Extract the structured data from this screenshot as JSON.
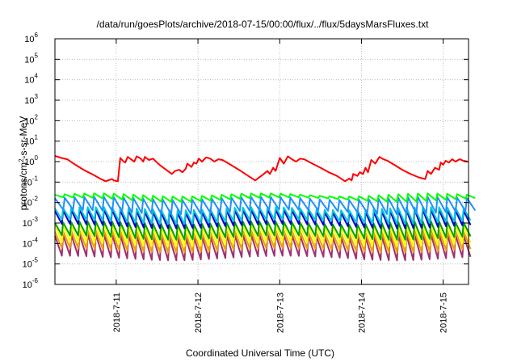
{
  "chart_data": {
    "type": "line",
    "title": "/data/run/goesPlots/archive/2018-07-15/00:00/flux/../flux/5daysMarsFluxes.txt",
    "xlabel": "Coordinated Universal Time (UTC)",
    "ylabel_parts": {
      "pre": "protons/cm",
      "sup": "2",
      "post": "-s-sr-MeV"
    },
    "yscale": "log",
    "ylim": [
      1e-06,
      1000000.0
    ],
    "xlim": [
      0.0,
      5.06
    ],
    "grid": true,
    "y_ticks": [
      {
        "value": 1e-06,
        "base": "10",
        "exp": "-6"
      },
      {
        "value": 1e-05,
        "base": "10",
        "exp": "-5"
      },
      {
        "value": 0.0001,
        "base": "10",
        "exp": "-4"
      },
      {
        "value": 0.001,
        "base": "10",
        "exp": "-3"
      },
      {
        "value": 0.01,
        "base": "10",
        "exp": "-2"
      },
      {
        "value": 0.1,
        "base": "10",
        "exp": "-1"
      },
      {
        "value": 1,
        "base": "10",
        "exp": "0"
      },
      {
        "value": 10,
        "base": "10",
        "exp": "1"
      },
      {
        "value": 100,
        "base": "10",
        "exp": "2"
      },
      {
        "value": 1000,
        "base": "10",
        "exp": "3"
      },
      {
        "value": 10000,
        "base": "10",
        "exp": "4"
      },
      {
        "value": 100000,
        "base": "10",
        "exp": "5"
      },
      {
        "value": 1000000,
        "base": "10",
        "exp": "6"
      }
    ],
    "x_ticks": [
      {
        "value": 0.75,
        "label": "2018-7-11"
      },
      {
        "value": 1.75,
        "label": "2018-7-12"
      },
      {
        "value": 2.75,
        "label": "2018-7-13"
      },
      {
        "value": 3.75,
        "label": "2018-7-14"
      },
      {
        "value": 4.75,
        "label": "2018-7-15"
      }
    ],
    "series": [
      {
        "color": "#ff0000",
        "points": [
          [
            0.0,
            1.9
          ],
          [
            0.08,
            1.5
          ],
          [
            0.15,
            1.3
          ],
          [
            0.25,
            0.7
          ],
          [
            0.35,
            0.4
          ],
          [
            0.45,
            0.25
          ],
          [
            0.55,
            0.15
          ],
          [
            0.62,
            0.11
          ],
          [
            0.7,
            0.14
          ],
          [
            0.72,
            0.12
          ],
          [
            0.77,
            0.11
          ],
          [
            0.8,
            1.5
          ],
          [
            0.83,
            1.1
          ],
          [
            0.86,
            0.9
          ],
          [
            0.89,
            1.7
          ],
          [
            0.93,
            1.3
          ],
          [
            0.97,
            1.0
          ],
          [
            1.0,
            1.8
          ],
          [
            1.05,
            1.4
          ],
          [
            1.08,
            1.0
          ],
          [
            1.1,
            1.7
          ],
          [
            1.15,
            1.2
          ],
          [
            1.2,
            1.4
          ],
          [
            1.25,
            0.9
          ],
          [
            1.3,
            0.6
          ],
          [
            1.38,
            0.35
          ],
          [
            1.43,
            0.25
          ],
          [
            1.47,
            0.35
          ],
          [
            1.52,
            0.4
          ],
          [
            1.56,
            0.3
          ],
          [
            1.6,
            0.45
          ],
          [
            1.62,
            0.8
          ],
          [
            1.67,
            0.55
          ],
          [
            1.7,
            0.9
          ],
          [
            1.73,
            0.8
          ],
          [
            1.76,
            1.4
          ],
          [
            1.8,
            1.0
          ],
          [
            1.85,
            1.6
          ],
          [
            1.9,
            1.4
          ],
          [
            1.95,
            1.0
          ],
          [
            2.0,
            1.3
          ],
          [
            2.05,
            1.2
          ],
          [
            2.15,
            0.7
          ],
          [
            2.25,
            0.4
          ],
          [
            2.35,
            0.22
          ],
          [
            2.45,
            0.12
          ],
          [
            2.55,
            0.24
          ],
          [
            2.6,
            0.35
          ],
          [
            2.63,
            0.25
          ],
          [
            2.67,
            0.5
          ],
          [
            2.7,
            0.35
          ],
          [
            2.75,
            1.5
          ],
          [
            2.8,
            0.8
          ],
          [
            2.85,
            1.8
          ],
          [
            2.9,
            1.3
          ],
          [
            2.95,
            1.0
          ],
          [
            3.0,
            1.4
          ],
          [
            3.05,
            1.3
          ],
          [
            3.15,
            0.8
          ],
          [
            3.25,
            0.5
          ],
          [
            3.35,
            0.3
          ],
          [
            3.45,
            0.2
          ],
          [
            3.55,
            0.11
          ],
          [
            3.6,
            0.15
          ],
          [
            3.63,
            0.12
          ],
          [
            3.65,
            0.25
          ],
          [
            3.7,
            0.2
          ],
          [
            3.73,
            0.3
          ],
          [
            3.77,
            0.25
          ],
          [
            3.8,
            0.5
          ],
          [
            3.83,
            0.3
          ],
          [
            3.87,
            1.2
          ],
          [
            3.92,
            0.8
          ],
          [
            3.97,
            1.7
          ],
          [
            4.02,
            1.3
          ],
          [
            4.07,
            1.1
          ],
          [
            4.15,
            0.7
          ],
          [
            4.25,
            0.4
          ],
          [
            4.35,
            0.25
          ],
          [
            4.45,
            0.17
          ],
          [
            4.5,
            0.15
          ],
          [
            4.53,
            0.14
          ],
          [
            4.56,
            0.35
          ],
          [
            4.6,
            0.25
          ],
          [
            4.65,
            0.5
          ],
          [
            4.7,
            0.4
          ],
          [
            4.72,
            0.9
          ],
          [
            4.75,
            0.7
          ],
          [
            4.78,
            1.1
          ],
          [
            4.82,
            0.9
          ],
          [
            4.86,
            1.3
          ],
          [
            4.9,
            1.0
          ],
          [
            4.95,
            1.3
          ],
          [
            5.0,
            1.1
          ],
          [
            5.05,
            1.0
          ]
        ]
      },
      {
        "color": "#00ff00",
        "spike_period": 0.12,
        "base_high": 0.028,
        "base_low": 0.018
      },
      {
        "color": "#1e90ff",
        "spike_period": 0.12,
        "base_high": 0.019,
        "base_low": 0.0045
      },
      {
        "color": "#00c8d8",
        "spike_period": 0.1,
        "base_high": 0.006,
        "base_low": 0.0015
      },
      {
        "color": "#0000cd",
        "spike_period": 0.1,
        "base_high": 0.0045,
        "base_low": 0.0009
      },
      {
        "color": "#00a000",
        "spike_period": 0.1,
        "base_high": 0.0012,
        "base_low": 0.00025
      },
      {
        "color": "#ffff00",
        "spike_period": 0.1,
        "base_high": 0.0009,
        "base_low": 0.00012
      },
      {
        "color": "#f0a000",
        "spike_period": 0.1,
        "base_high": 0.00045,
        "base_low": 6e-05
      },
      {
        "color": "#a03070",
        "spike_period": 0.1,
        "base_high": 0.00028,
        "base_low": 2.5e-05
      }
    ]
  }
}
